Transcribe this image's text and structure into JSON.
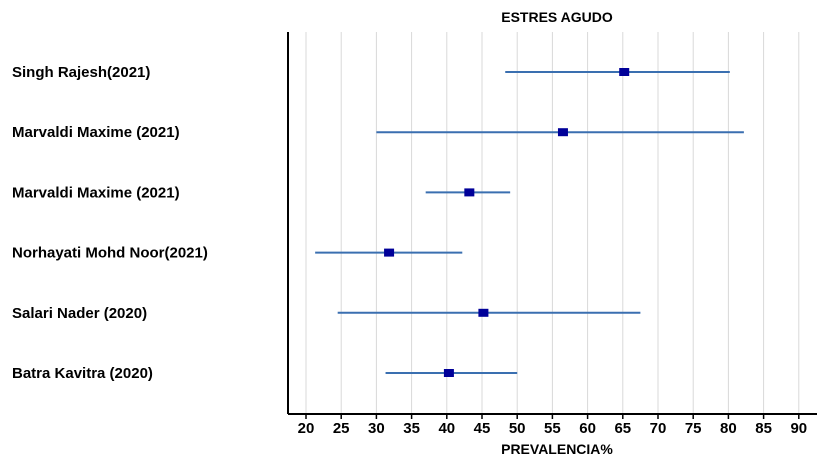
{
  "chart_data": {
    "type": "forest",
    "title": "ESTRES AGUDO",
    "xlabel": "PREVALENCIA%",
    "ylabel": "",
    "xlim": [
      18,
      92
    ],
    "xticks": [
      20,
      25,
      30,
      35,
      40,
      45,
      50,
      55,
      60,
      65,
      70,
      75,
      80,
      85,
      90
    ],
    "grid": "vertical",
    "studies": [
      {
        "label": "Singh Rajesh(2021)",
        "estimate": 65.2,
        "lower": 48.3,
        "upper": 80.2
      },
      {
        "label": "Marvaldi Maxime (2021)",
        "estimate": 56.5,
        "lower": 30.0,
        "upper": 82.2
      },
      {
        "label": "Marvaldi Maxime (2021)",
        "estimate": 43.2,
        "lower": 37.0,
        "upper": 49.0
      },
      {
        "label": "Norhayati Mohd Noor(2021)",
        "estimate": 31.8,
        "lower": 21.3,
        "upper": 42.2
      },
      {
        "label": "Salari Nader (2020)",
        "estimate": 45.2,
        "lower": 24.5,
        "upper": 67.5
      },
      {
        "label": "Batra Kavitra (2020)",
        "estimate": 40.3,
        "lower": 31.3,
        "upper": 50.0
      }
    ],
    "colors": {
      "ci_line": "#3a6fb0",
      "point": "#000099",
      "grid": "#d9d9d9",
      "axis": "#000000"
    }
  }
}
